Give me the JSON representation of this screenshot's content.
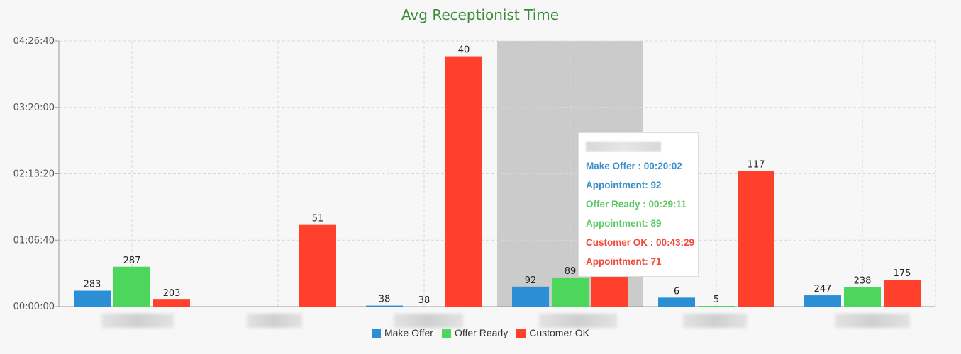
{
  "chart_data": {
    "type": "bar",
    "title": "Avg Receptionist Time",
    "xlabel": "",
    "ylabel": "",
    "y_unit": "seconds",
    "ylim": [
      0,
      16000
    ],
    "yticks": [
      {
        "value": 0,
        "label": "00:00:00"
      },
      {
        "value": 4000,
        "label": "01:06:40"
      },
      {
        "value": 8000,
        "label": "02:13:20"
      },
      {
        "value": 12000,
        "label": "03:20:00"
      },
      {
        "value": 16000,
        "label": "04:26:40"
      }
    ],
    "grid": true,
    "legend_position": "bottom-center",
    "category_count": 6,
    "highlight_index": 3,
    "series": [
      {
        "name": "Make Offer",
        "color": "#2b8fd6",
        "values": [
          960,
          0,
          60,
          1202,
          540,
          680
        ],
        "labels": [
          "283",
          "",
          "38",
          "92",
          "6",
          "247"
        ]
      },
      {
        "name": "Offer Ready",
        "color": "#4cd65c",
        "values": [
          2400,
          0,
          0,
          1751,
          40,
          1180
        ],
        "labels": [
          "287",
          "",
          "38",
          "89",
          "5",
          "238"
        ]
      },
      {
        "name": "Customer OK",
        "color": "#ff412c",
        "values": [
          420,
          4920,
          15080,
          2609,
          8180,
          1620
        ],
        "labels": [
          "203",
          "51",
          "40",
          "71",
          "117",
          "175"
        ]
      }
    ]
  },
  "tooltip": {
    "lines": [
      {
        "text": "Make Offer : 00:20:02",
        "color": "#3a8fc8"
      },
      {
        "text": "Appointment: 92",
        "color": "#3a8fc8"
      },
      {
        "text": "Offer Ready : 00:29:11",
        "color": "#5cc865"
      },
      {
        "text": "Appointment: 89",
        "color": "#5cc865"
      },
      {
        "text": "Customer OK : 00:43:29",
        "color": "#f04a3a"
      },
      {
        "text": "Appointment: 71",
        "color": "#f04a3a"
      }
    ]
  },
  "colors": {
    "title": "#3c8a3c",
    "grid": "#d9d9d9",
    "axis": "#999999",
    "highlight": "#cbcbcb"
  }
}
